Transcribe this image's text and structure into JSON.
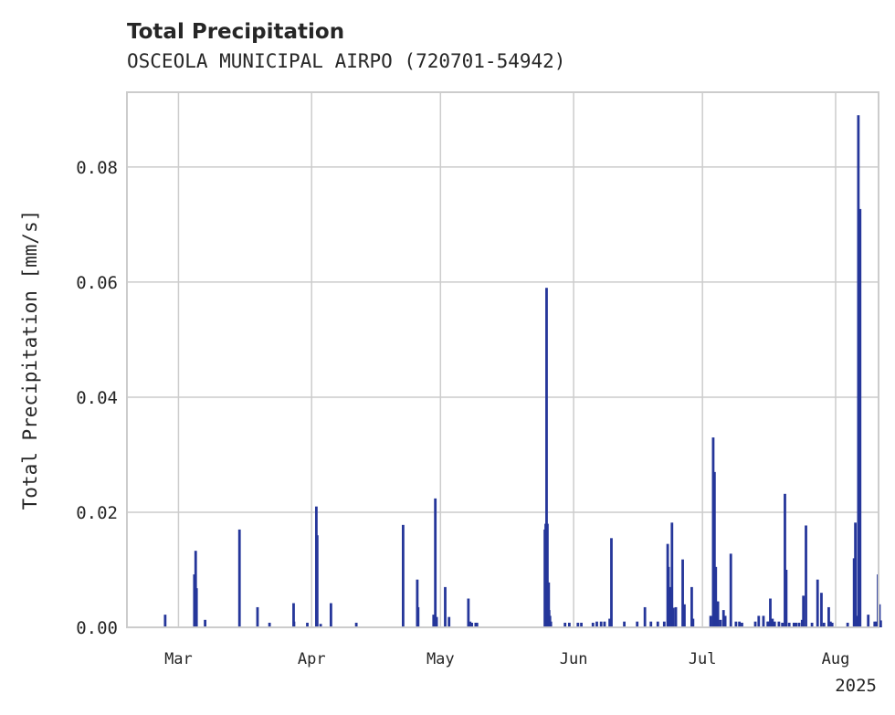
{
  "chart_data": {
    "type": "bar",
    "title": "Total Precipitation",
    "subtitle": "OSCEOLA MUNICIPAL AIRPO (720701-54942)",
    "xlabel": "",
    "ylabel": "Total Precipitation [mm/s]",
    "year_label": "2025",
    "x_tick_labels": [
      "Mar",
      "Apr",
      "May",
      "Jun",
      "Jul",
      "Aug"
    ],
    "x_tick_days": [
      0,
      31,
      61,
      92,
      122,
      153
    ],
    "xlim_days": [
      -12,
      163
    ],
    "ylim": [
      0.0,
      0.093
    ],
    "y_ticks": [
      0.0,
      0.02,
      0.04,
      0.06,
      0.08
    ],
    "y_tick_labels": [
      "0.00",
      "0.02",
      "0.04",
      "0.06",
      "0.08"
    ],
    "grid": true,
    "bar_color": "#25369a",
    "series": [
      {
        "name": "Total Precipitation",
        "x_days": [
          -3.1,
          3.7,
          4.0,
          4.2,
          6.2,
          14.2,
          18.4,
          21.2,
          26.8,
          26.9,
          30.0,
          32.1,
          32.3,
          33.1,
          35.5,
          41.4,
          52.3,
          55.6,
          55.8,
          59.4,
          59.8,
          60.1,
          62.1,
          63.0,
          67.5,
          67.9,
          68.3,
          69.2,
          69.5,
          85.3,
          85.5,
          85.7,
          85.9,
          86.2,
          90.0,
          91.0,
          93.0,
          93.8,
          100.4,
          100.8,
          108.6,
          114.9,
          115.2,
          115.8,
          117.4,
          117.8,
          119.5,
          119.8,
          124.5,
          124.8,
          125.1,
          125.4,
          126.2,
          128.6,
          131.2,
          137.8,
          138.3,
          141.2,
          141.5,
          145.2,
          145.5,
          146.1,
          148.8,
          149.7,
          151.4,
          151.8,
          152.2,
          157.6,
          158.3,
          158.7,
          160.6,
          162.9,
          163.2,
          157.3,
          157.5,
          158.1,
          163.5,
          113.9,
          114.1,
          114.4,
          86.3,
          86.5,
          86.7,
          96.5,
          97.4,
          98.4,
          99.2,
          103.8,
          106.8,
          110.0,
          111.6,
          113.1,
          123.9,
          125.6,
          126.9,
          127.3,
          129.8,
          130.6,
          134.3,
          135.1,
          136.2,
          137.2,
          137.4,
          138.8,
          139.8,
          140.6,
          142.2,
          143.3,
          143.8,
          144.5,
          147.5,
          150.3,
          155.8,
          162.1,
          162.5
        ],
        "values": [
          0.0022,
          0.0092,
          0.0133,
          0.0068,
          0.0013,
          0.017,
          0.0035,
          0.0008,
          0.0042,
          0.001,
          0.0008,
          0.021,
          0.016,
          0.0006,
          0.0042,
          0.0008,
          0.0178,
          0.0083,
          0.0035,
          0.0022,
          0.0224,
          0.0018,
          0.007,
          0.0018,
          0.005,
          0.001,
          0.0008,
          0.0008,
          0.0008,
          0.017,
          0.018,
          0.059,
          0.018,
          0.0078,
          0.0008,
          0.0008,
          0.0008,
          0.0008,
          0.0015,
          0.0155,
          0.0035,
          0.0182,
          0.0034,
          0.0035,
          0.0118,
          0.004,
          0.007,
          0.0015,
          0.033,
          0.027,
          0.0105,
          0.0045,
          0.0013,
          0.0128,
          0.0008,
          0.005,
          0.0015,
          0.0232,
          0.01,
          0.0013,
          0.0055,
          0.0177,
          0.0083,
          0.006,
          0.0035,
          0.001,
          0.0008,
          0.0182,
          0.089,
          0.0727,
          0.0022,
          0.0092,
          0.004,
          0.012,
          0.007,
          0.002,
          0.0012,
          0.0145,
          0.0105,
          0.007,
          0.003,
          0.002,
          0.001,
          0.0008,
          0.001,
          0.001,
          0.001,
          0.001,
          0.001,
          0.001,
          0.001,
          0.001,
          0.002,
          0.0045,
          0.003,
          0.002,
          0.001,
          0.001,
          0.001,
          0.002,
          0.002,
          0.001,
          0.001,
          0.001,
          0.001,
          0.0008,
          0.0008,
          0.0008,
          0.0008,
          0.0008,
          0.0008,
          0.0008,
          0.0008,
          0.001,
          0.001
        ]
      }
    ]
  }
}
